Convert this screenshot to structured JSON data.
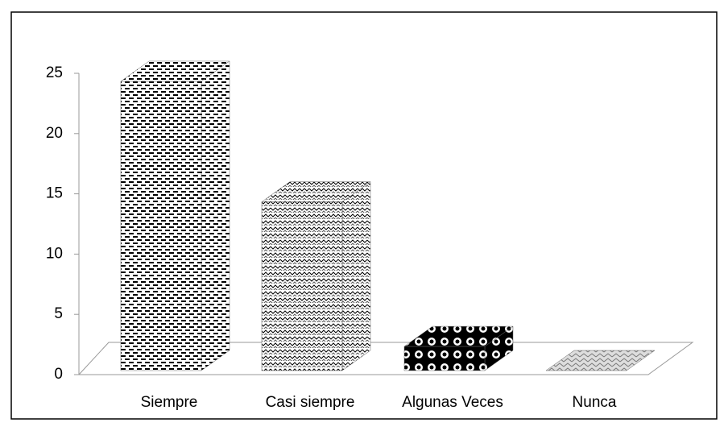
{
  "chart_data": {
    "type": "bar3d",
    "categories": [
      "Siempre",
      "Casi siempre",
      "Algunas Veces",
      "Nunca"
    ],
    "values": [
      24,
      14,
      2,
      0
    ],
    "ylim": [
      0,
      25
    ],
    "yticks": [
      0,
      5,
      10,
      15,
      20,
      25
    ]
  }
}
